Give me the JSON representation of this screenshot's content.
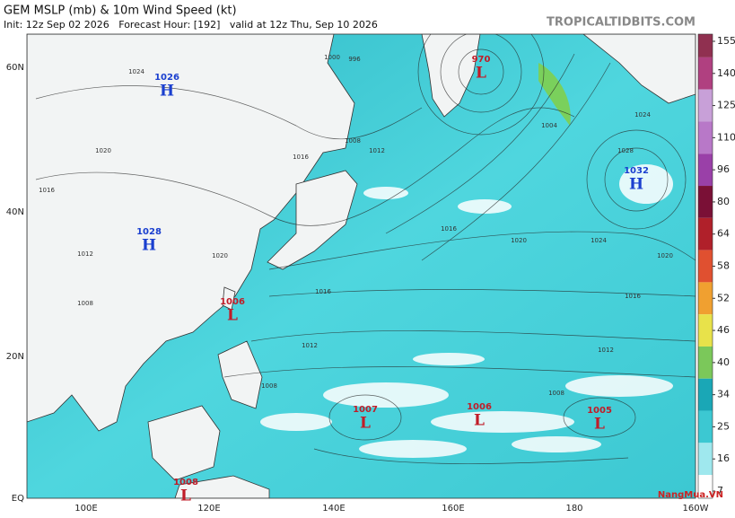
{
  "header": {
    "title": "GEM MSLP (mb) & 10m Wind Speed (kt)",
    "subtitle": "Init: 12z Sep 02 2026   Forecast Hour: [192]   valid at 12z Thu, Sep 10 2026",
    "source": "TROPICALTIDBITS.COM"
  },
  "axes": {
    "latitudes": [
      "60N",
      "40N",
      "20N",
      "EQ"
    ],
    "longitudes": [
      "100E",
      "120E",
      "140E",
      "160E",
      "180",
      "160W"
    ]
  },
  "pressure_centers": [
    {
      "letter": "H",
      "value": "1026"
    },
    {
      "letter": "H",
      "value": "1028"
    },
    {
      "letter": "L",
      "value": "1006"
    },
    {
      "letter": "L",
      "value": "970"
    },
    {
      "letter": "H",
      "value": "1032"
    },
    {
      "letter": "L",
      "value": "1007"
    },
    {
      "letter": "L",
      "value": "1006"
    },
    {
      "letter": "L",
      "value": "1005"
    },
    {
      "letter": "L",
      "value": "1008"
    }
  ],
  "isobar_labels": [
    "1024",
    "1020",
    "1016",
    "1012",
    "1008",
    "1000",
    "996",
    "1004",
    "1016",
    "1016",
    "1012",
    "1008",
    "1020",
    "1024",
    "1028",
    "1024",
    "1020",
    "1016",
    "1012",
    "1012",
    "1008",
    "1008",
    "1016",
    "1020"
  ],
  "colorbar": {
    "ticks": [
      155,
      140,
      125,
      110,
      96,
      80,
      64,
      58,
      52,
      46,
      40,
      34,
      25,
      16,
      7
    ]
  },
  "watermark": "NangMua.VN"
}
